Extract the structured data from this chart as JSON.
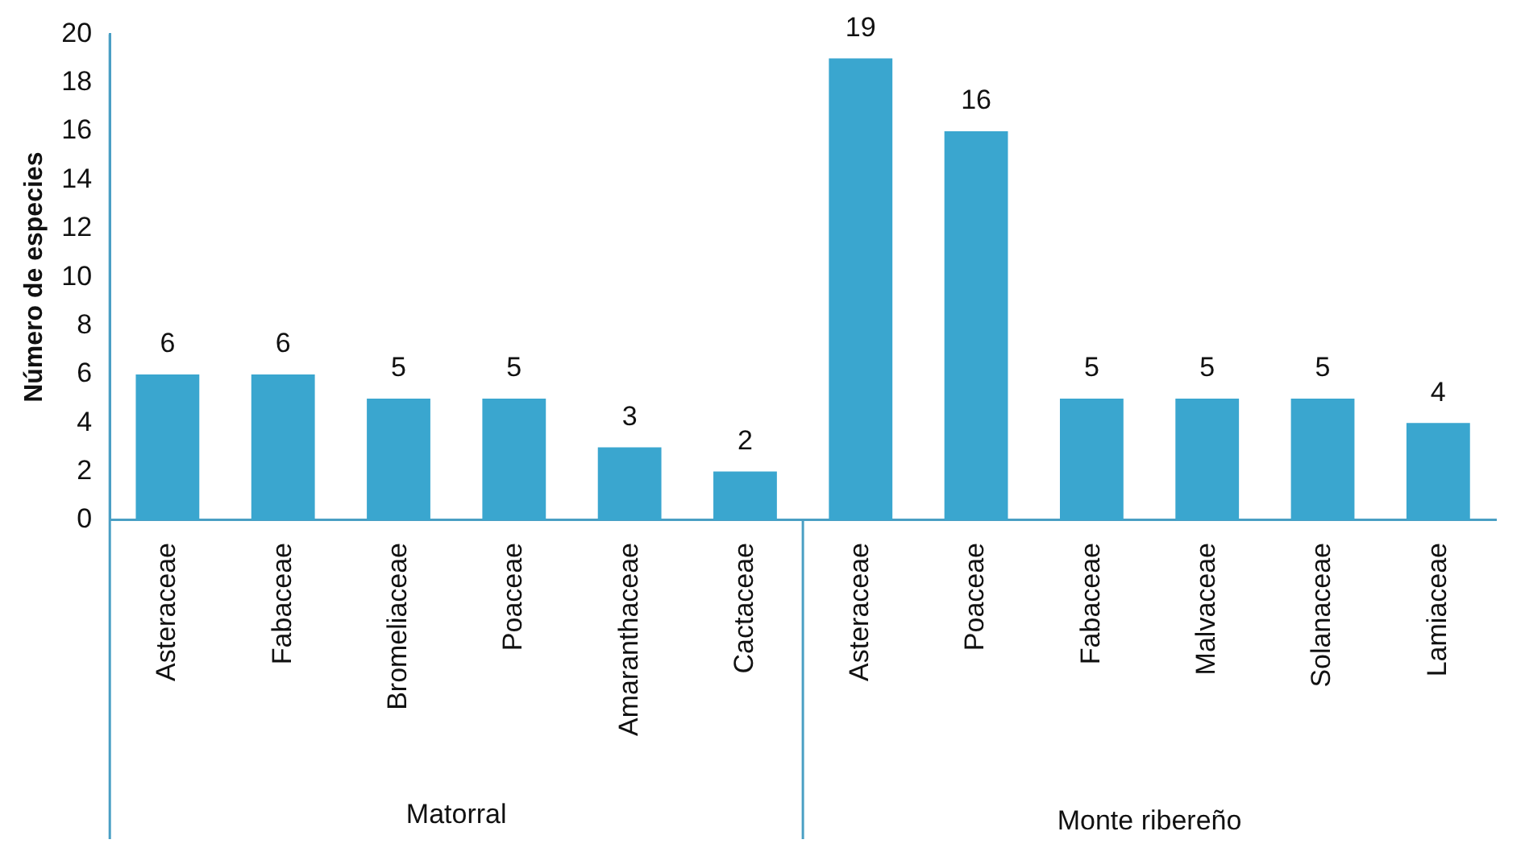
{
  "chart_data": {
    "type": "bar",
    "ylabel": "Número de especies",
    "categories": [
      "Asteraceae",
      "Fabaceae",
      "Bromeliaceae",
      "Poaceae",
      "Amaranthaceae",
      "Cactaceae",
      "Asteraceae",
      "Poaceae",
      "Fabaceae",
      "Malvaceae",
      "Solanaceae",
      "Lamiaceae"
    ],
    "values": [
      6,
      6,
      5,
      5,
      3,
      2,
      19,
      16,
      5,
      5,
      5,
      4
    ],
    "color": "#3aa6cf",
    "ylim": [
      0,
      20
    ],
    "yticks": [
      0,
      2,
      4,
      6,
      8,
      10,
      12,
      14,
      16,
      18,
      20
    ],
    "grid": false,
    "legend": false,
    "data_labels": true,
    "annotations": [
      "Matorral",
      "Monte ribereño"
    ]
  }
}
